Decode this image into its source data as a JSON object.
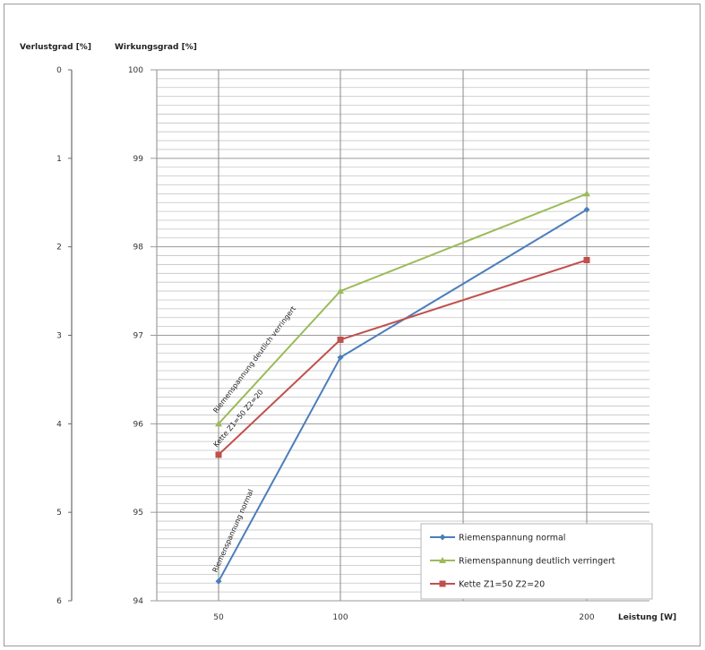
{
  "chart_data": {
    "type": "line",
    "title": "",
    "left_axis": {
      "label": "Verlustgrad [%]",
      "ticks": [
        "0",
        "1",
        "2",
        "3",
        "4",
        "5",
        "6"
      ]
    },
    "ylabel": "Wirkungsgrad [%]",
    "xlabel": "Leistung [W]",
    "ylim": [
      94,
      100
    ],
    "y_ticks": [
      "94",
      "95",
      "96",
      "97",
      "98",
      "99",
      "100"
    ],
    "x_ticks": [
      "50",
      "100",
      "200"
    ],
    "grid": true,
    "legend_position": "bottom-right",
    "series": [
      {
        "name": "Riemenspannung normal",
        "color": "#4a7ebb",
        "marker": "diamond",
        "x": [
          50,
          100,
          200
        ],
        "values": [
          94.22,
          96.75,
          98.42
        ]
      },
      {
        "name": "Riemenspannung deutlich verringert",
        "color": "#9bbb59",
        "marker": "triangle",
        "x": [
          50,
          100,
          200
        ],
        "values": [
          96.0,
          97.5,
          98.6
        ]
      },
      {
        "name": "Kette Z1=50 Z2=20",
        "color": "#c0504d",
        "marker": "square",
        "x": [
          50,
          100,
          200
        ],
        "values": [
          95.65,
          96.95,
          97.85
        ]
      }
    ],
    "annotations": [
      "Riemenspannung deutlich verringert",
      "Kette Z1=50 Z2=20",
      "Riemenspannung normal"
    ]
  }
}
